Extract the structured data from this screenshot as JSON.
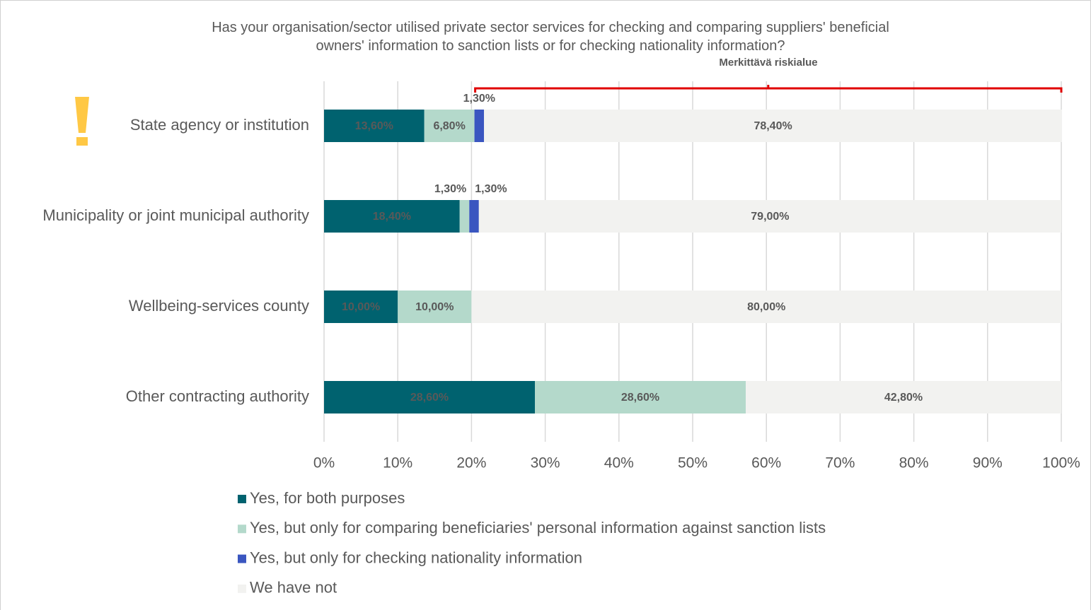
{
  "chart_data": {
    "type": "stacked-bar-horizontal",
    "title": "Has your organisation/sector utilised private sector services for checking and comparing suppliers' beneficial owners' information to sanction lists or for checking nationality information?",
    "categories": [
      "State agency or institution",
      "Municipality or joint municipal authority",
      "Wellbeing-services county",
      "Other contracting authority"
    ],
    "series": [
      {
        "name": "Yes, for both purposes",
        "color": "#00626f",
        "values": [
          13.6,
          18.4,
          10.0,
          28.6
        ],
        "value_labels": [
          "13,60%",
          "18,40%",
          "10,00%",
          "28,60%"
        ]
      },
      {
        "name": "Yes, but only for comparing beneficiaries' personal information against sanction lists",
        "color": "#b4d9cb",
        "values": [
          6.8,
          1.3,
          10.0,
          28.6
        ],
        "value_labels": [
          "6,80%",
          "1,30%",
          "10,00%",
          "28,60%"
        ]
      },
      {
        "name": "Yes, but only for checking nationality information",
        "color": "#3a56c0",
        "values": [
          1.3,
          1.3,
          null,
          null
        ],
        "value_labels": [
          "1,30%",
          "1,30%",
          null,
          null
        ]
      },
      {
        "name": "We have not",
        "color": "#f2f2f0",
        "values": [
          78.4,
          79.0,
          80.0,
          42.8
        ],
        "value_labels": [
          "78,40%",
          "79,00%",
          "80,00%",
          "42,80%"
        ]
      }
    ],
    "xlim": [
      0,
      100
    ],
    "xticks": [
      {
        "value": 0,
        "label": "0%"
      },
      {
        "value": 10,
        "label": "10%"
      },
      {
        "value": 20,
        "label": "20%"
      },
      {
        "value": 30,
        "label": "30%"
      },
      {
        "value": 40,
        "label": "40%"
      },
      {
        "value": 50,
        "label": "50%"
      },
      {
        "value": 60,
        "label": "60%"
      },
      {
        "value": 70,
        "label": "70%"
      },
      {
        "value": 80,
        "label": "80%"
      },
      {
        "value": 90,
        "label": "90%"
      },
      {
        "value": 100,
        "label": "100%"
      }
    ],
    "grid": true,
    "annotation": {
      "text": "Merkittävä riskialue",
      "range": [
        20.5,
        100
      ],
      "color": "#e00000"
    }
  }
}
